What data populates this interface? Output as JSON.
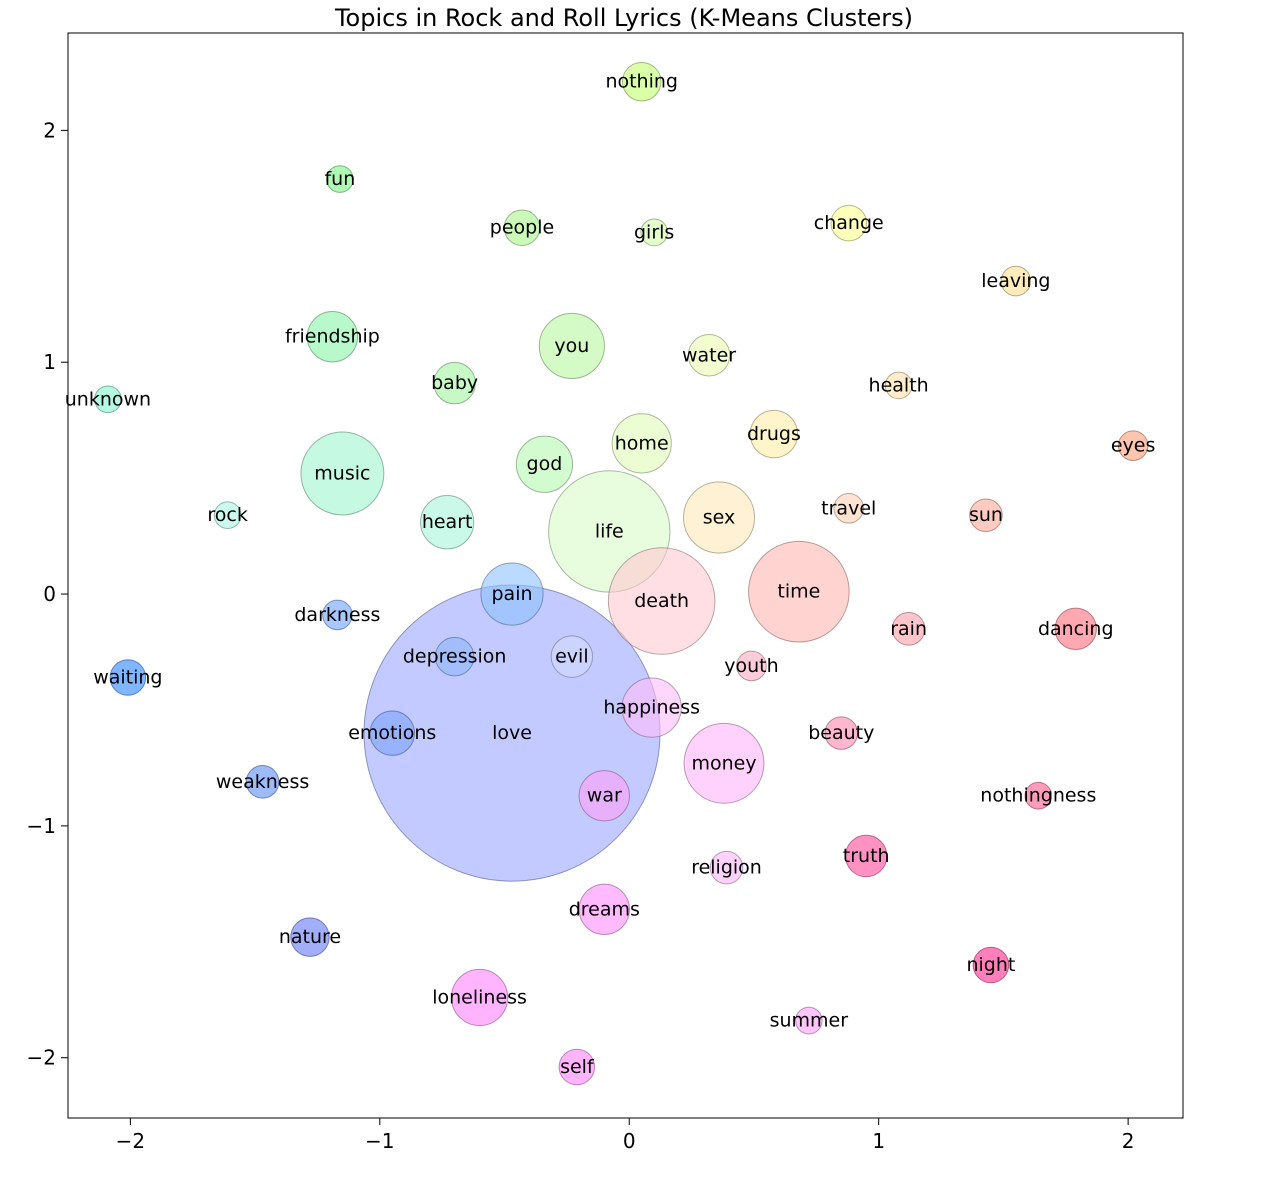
{
  "chart_data": {
    "type": "scatter",
    "title": "Topics in Rock and Roll Lyrics (K-Means Clusters)",
    "xlabel": "",
    "ylabel": "",
    "xlim": [
      -2.25,
      2.22
    ],
    "ylim": [
      -2.26,
      2.42
    ],
    "xticks": [
      -2,
      -1,
      0,
      1,
      2
    ],
    "yticks": [
      -2,
      -1,
      0,
      1,
      2
    ],
    "tick_labels_x": [
      "−2",
      "−1",
      "0",
      "1",
      "2"
    ],
    "tick_labels_y": [
      "−2",
      "−1",
      "0",
      "1",
      "2"
    ],
    "grid": false,
    "legend": "none",
    "points": [
      {
        "label": "love",
        "x": -0.47,
        "y": -0.6,
        "size": 1.0,
        "color": "#9aa6ff"
      },
      {
        "label": "life",
        "x": -0.08,
        "y": 0.27,
        "size": 0.41,
        "color": "#d8fcc8"
      },
      {
        "label": "death",
        "x": 0.13,
        "y": -0.03,
        "size": 0.36,
        "color": "#ffc9d2"
      },
      {
        "label": "time",
        "x": 0.68,
        "y": 0.01,
        "size": 0.34,
        "color": "#ffb6b0"
      },
      {
        "label": "music",
        "x": -1.15,
        "y": 0.52,
        "size": 0.28,
        "color": "#9ef5cf"
      },
      {
        "label": "money",
        "x": 0.38,
        "y": -0.73,
        "size": 0.27,
        "color": "#ffb2fb"
      },
      {
        "label": "you",
        "x": -0.23,
        "y": 1.07,
        "size": 0.22,
        "color": "#b8f89e"
      },
      {
        "label": "sex",
        "x": 0.36,
        "y": 0.33,
        "size": 0.24,
        "color": "#ffeab8"
      },
      {
        "label": "pain",
        "x": -0.47,
        "y": 0.0,
        "size": 0.21,
        "color": "#8cc2ff"
      },
      {
        "label": "happiness",
        "x": 0.09,
        "y": -0.49,
        "size": 0.2,
        "color": "#ffbdfb"
      },
      {
        "label": "home",
        "x": 0.05,
        "y": 0.65,
        "size": 0.2,
        "color": "#e0fcb8"
      },
      {
        "label": "loneliness",
        "x": -0.6,
        "y": -1.74,
        "size": 0.19,
        "color": "#ff82fb"
      },
      {
        "label": "heart",
        "x": -0.73,
        "y": 0.31,
        "size": 0.18,
        "color": "#a8f5da"
      },
      {
        "label": "god",
        "x": -0.34,
        "y": 0.56,
        "size": 0.19,
        "color": "#b6f8b0"
      },
      {
        "label": "friendship",
        "x": -1.19,
        "y": 1.11,
        "size": 0.17,
        "color": "#88f5a8"
      },
      {
        "label": "dreams",
        "x": -0.1,
        "y": -1.36,
        "size": 0.17,
        "color": "#ff8efb"
      },
      {
        "label": "war",
        "x": -0.1,
        "y": -0.87,
        "size": 0.17,
        "color": "#ff9efc"
      },
      {
        "label": "drugs",
        "x": 0.58,
        "y": 0.69,
        "size": 0.16,
        "color": "#ffeca6"
      },
      {
        "label": "emotions",
        "x": -0.95,
        "y": -0.6,
        "size": 0.15,
        "color": "#7aa2ff"
      },
      {
        "label": "water",
        "x": 0.32,
        "y": 1.03,
        "size": 0.14,
        "color": "#eafcb0"
      },
      {
        "label": "truth",
        "x": 0.95,
        "y": -1.13,
        "size": 0.14,
        "color": "#ff4a9a"
      },
      {
        "label": "dancing",
        "x": 1.79,
        "y": -0.15,
        "size": 0.14,
        "color": "#ff6e7e"
      },
      {
        "label": "nature",
        "x": -1.28,
        "y": -1.48,
        "size": 0.13,
        "color": "#6478f5"
      },
      {
        "label": "waiting",
        "x": -2.01,
        "y": -0.36,
        "size": 0.12,
        "color": "#2c86ff"
      },
      {
        "label": "nothing",
        "x": 0.05,
        "y": 2.21,
        "size": 0.13,
        "color": "#c2ff6e"
      },
      {
        "label": "depression",
        "x": -0.7,
        "y": -0.27,
        "size": 0.13,
        "color": "#8cb6ff"
      },
      {
        "label": "evil",
        "x": -0.23,
        "y": -0.27,
        "size": 0.14,
        "color": "#d2d8ff"
      },
      {
        "label": "baby",
        "x": -0.7,
        "y": 0.91,
        "size": 0.14,
        "color": "#a2f5a2"
      },
      {
        "label": "night",
        "x": 1.45,
        "y": -1.6,
        "size": 0.12,
        "color": "#ff2a8e"
      },
      {
        "label": "self",
        "x": -0.21,
        "y": -2.04,
        "size": 0.12,
        "color": "#ff82fb"
      },
      {
        "label": "change",
        "x": 0.88,
        "y": 1.6,
        "size": 0.12,
        "color": "#fcff90"
      },
      {
        "label": "people",
        "x": -0.43,
        "y": 1.58,
        "size": 0.12,
        "color": "#a6f58c"
      },
      {
        "label": "weakness",
        "x": -1.47,
        "y": -0.81,
        "size": 0.11,
        "color": "#5c8cf5"
      },
      {
        "label": "beauty",
        "x": 0.85,
        "y": -0.6,
        "size": 0.11,
        "color": "#ff86ae"
      },
      {
        "label": "sun",
        "x": 1.43,
        "y": 0.34,
        "size": 0.11,
        "color": "#ffa896"
      },
      {
        "label": "religion",
        "x": 0.39,
        "y": -1.18,
        "size": 0.11,
        "color": "#ffb4f8"
      },
      {
        "label": "rain",
        "x": 1.12,
        "y": -0.15,
        "size": 0.11,
        "color": "#ff9ea6"
      },
      {
        "label": "youth",
        "x": 0.49,
        "y": -0.31,
        "size": 0.1,
        "color": "#ffacc2"
      },
      {
        "label": "travel",
        "x": 0.88,
        "y": 0.37,
        "size": 0.1,
        "color": "#ffd0b2"
      },
      {
        "label": "eyes",
        "x": 2.02,
        "y": 0.64,
        "size": 0.1,
        "color": "#ff9e7a"
      },
      {
        "label": "summer",
        "x": 0.72,
        "y": -1.84,
        "size": 0.09,
        "color": "#ff9cf8"
      },
      {
        "label": "darkness",
        "x": -1.17,
        "y": -0.09,
        "size": 0.1,
        "color": "#6aa2ff"
      },
      {
        "label": "nothingness",
        "x": 1.64,
        "y": -0.87,
        "size": 0.09,
        "color": "#ff5a8e"
      },
      {
        "label": "leaving",
        "x": 1.55,
        "y": 1.35,
        "size": 0.1,
        "color": "#ffdf90"
      },
      {
        "label": "health",
        "x": 1.08,
        "y": 0.9,
        "size": 0.09,
        "color": "#ffe0a6"
      },
      {
        "label": "unknown",
        "x": -2.09,
        "y": 0.84,
        "size": 0.09,
        "color": "#86f5ce"
      },
      {
        "label": "rock",
        "x": -1.61,
        "y": 0.34,
        "size": 0.09,
        "color": "#a8f8e2"
      },
      {
        "label": "fun",
        "x": -1.16,
        "y": 1.79,
        "size": 0.09,
        "color": "#78f582"
      },
      {
        "label": "girls",
        "x": 0.1,
        "y": 1.56,
        "size": 0.09,
        "color": "#d0fca8"
      }
    ]
  }
}
